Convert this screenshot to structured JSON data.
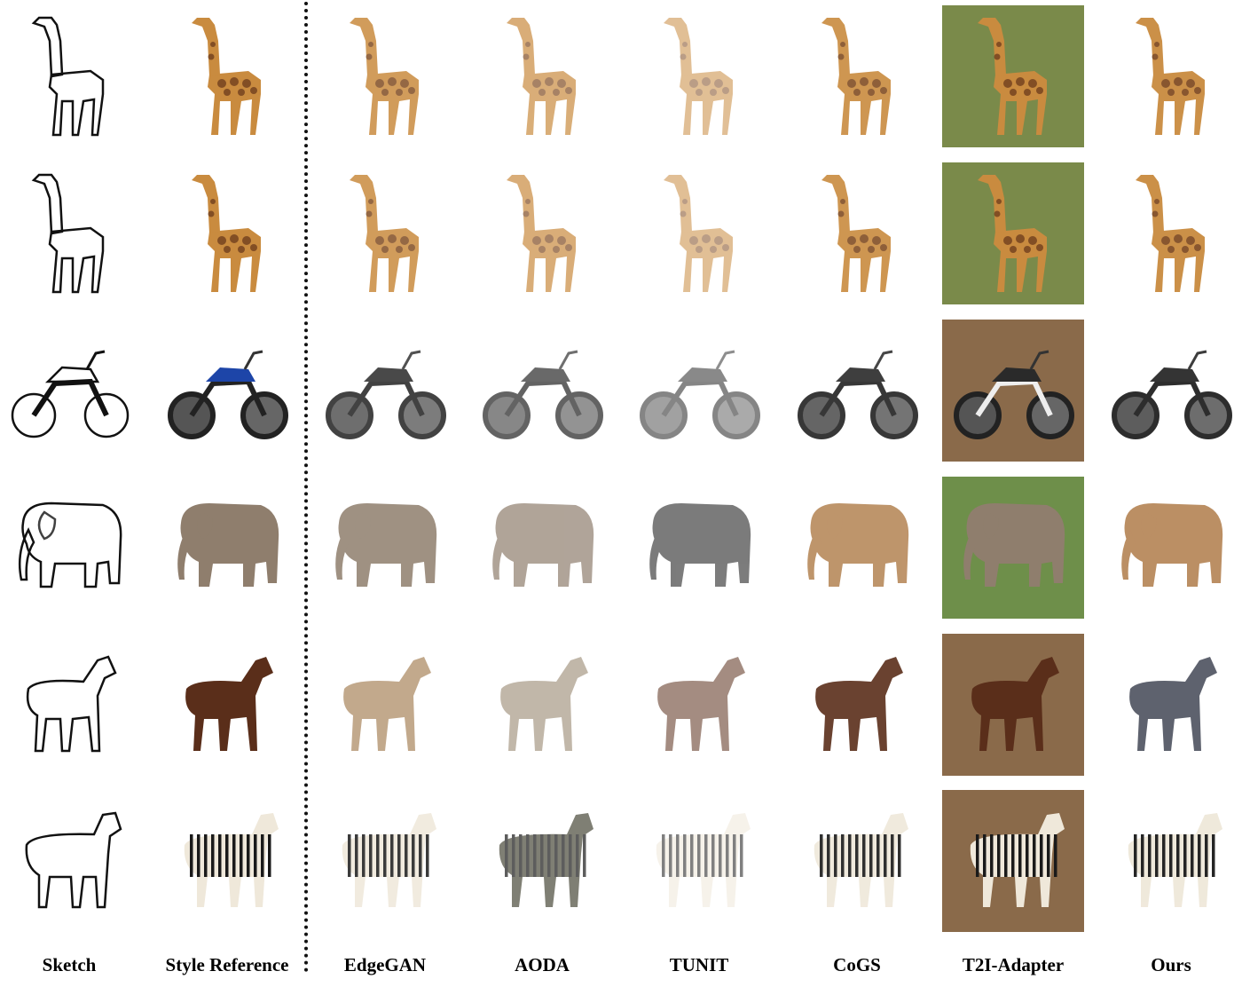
{
  "figure": {
    "columns": [
      {
        "id": "sketch",
        "label": "Sketch"
      },
      {
        "id": "style_reference",
        "label": "Style Reference"
      },
      {
        "id": "edgegan",
        "label": "EdgeGAN"
      },
      {
        "id": "aoda",
        "label": "AODA"
      },
      {
        "id": "tunit",
        "label": "TUNIT"
      },
      {
        "id": "cogs",
        "label": "CoGS"
      },
      {
        "id": "t2i_adapter",
        "label": "T2I-Adapter"
      },
      {
        "id": "ours",
        "label": "Ours"
      }
    ],
    "rows": [
      {
        "subject": "giraffe"
      },
      {
        "subject": "giraffe"
      },
      {
        "subject": "motorcycle"
      },
      {
        "subject": "elephant"
      },
      {
        "subject": "horse"
      },
      {
        "subject": "zebra"
      }
    ],
    "colors": {
      "giraffe_base": "#c98b3f",
      "giraffe_patch": "#6b3a1c",
      "elephant": "#8f7e6d",
      "horse_brown": "#5a2e1a",
      "zebra_stripe": "#1a1a1a",
      "motorcycle_blue": "#1d45a8",
      "motorcycle_dark": "#2a2a2a",
      "grass": "#7a8a4a",
      "sand": "#8a6a4a"
    }
  }
}
